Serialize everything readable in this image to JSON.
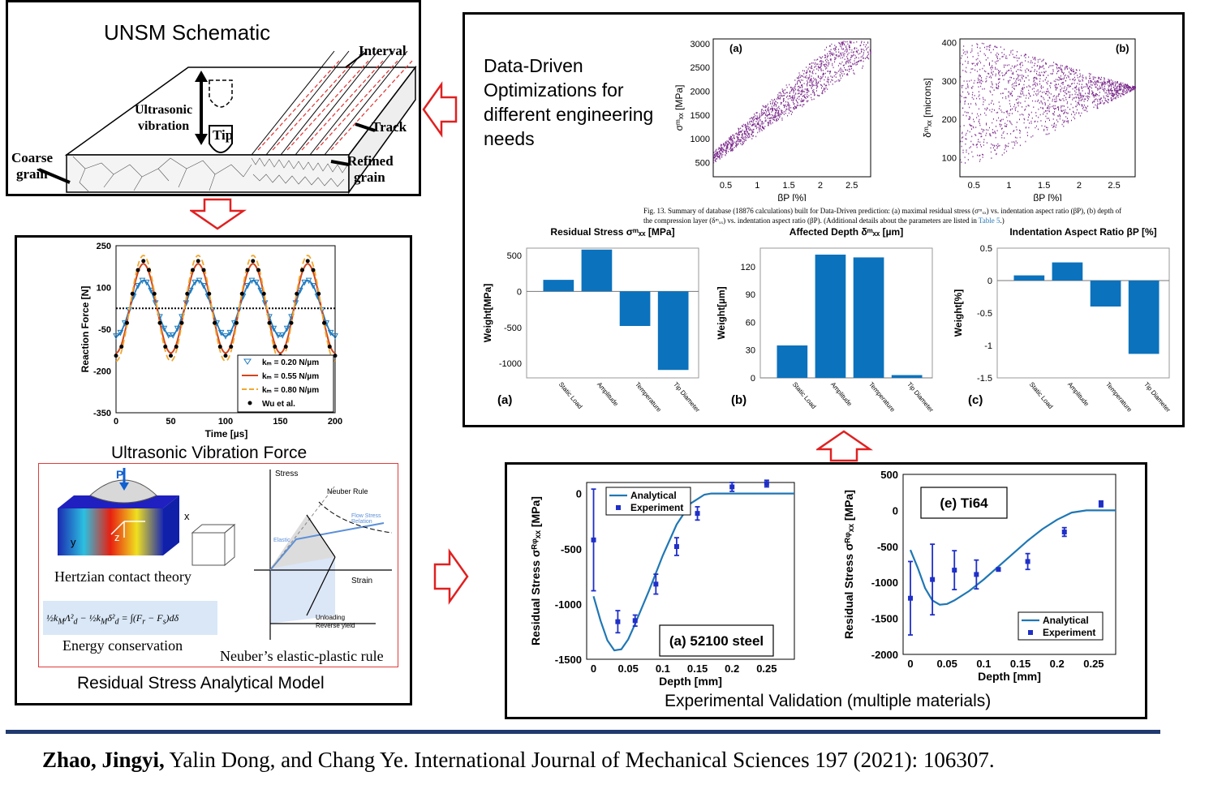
{
  "unsm": {
    "title": "UNSM Schematic",
    "labels": {
      "interval": "Interval",
      "ultrasonic": "Ultrasonic",
      "vibration": "vibration",
      "tip": "Tip",
      "track": "Track",
      "coarse": "Coarse",
      "coarse_grain": "grain",
      "refined": "Refined",
      "refined_grain": "grain"
    }
  },
  "force": {
    "caption": "Ultrasonic Vibration Force",
    "ylabel": "Reaction Force [N]",
    "xlabel": "Time [µs]",
    "yticks": [
      "250",
      "100",
      "-50",
      "-200",
      "-350"
    ],
    "xticks": [
      "0",
      "50",
      "100",
      "150",
      "200"
    ],
    "legend": [
      "kₘ = 0.20 N/µm",
      "kₘ = 0.55 N/µm",
      "kₘ = 0.80 N/µm",
      "Wu et al."
    ],
    "colors": {
      "k020": "#1f7bbf",
      "k055": "#d3451c",
      "k080": "#f0a830",
      "wu": "#000000"
    }
  },
  "model": {
    "caption": "Residual Stress Analytical Model",
    "hertz_label": "Hertzian contact theory",
    "energy_label": "Energy conservation",
    "neuber_label": "Neuber’s elastic-plastic rule",
    "neuber_rule": "Neuber Rule",
    "stress": "Stress",
    "strain": "Strain",
    "flow": "Flow Stress Relation",
    "elastic": "Elastic",
    "unloading": "Unloading",
    "reverse": "Reverse yield",
    "force_p": "P",
    "axes": {
      "x": "x",
      "y": "y",
      "z": "z"
    }
  },
  "dd": {
    "title_l1": "Data-Driven",
    "title_l2": "Optimizations for",
    "title_l3": "different engineering",
    "title_l4": "needs",
    "scatter_a": {
      "tag": "(a)",
      "ylabel": "σᵐₓₓ [MPa]",
      "xlabel": "βP [%]",
      "yticks": [
        "3000",
        "2500",
        "2000",
        "1500",
        "1000",
        "500"
      ],
      "xticks": [
        "0.5",
        "1",
        "1.5",
        "2",
        "2.5"
      ]
    },
    "scatter_b": {
      "tag": "(b)",
      "ylabel": "δᵐₓₓ [microns]",
      "xlabel": "βP [%]",
      "yticks": [
        "400",
        "300",
        "200",
        "100"
      ],
      "xticks": [
        "0.5",
        "1",
        "1.5",
        "2",
        "2.5"
      ]
    },
    "fig_caption_l1": "Fig. 13.  Summary of database (18876 calculations) built for Data-Driven prediction: (a) maximal residual stress (σᵐₓₓ) vs. indentation aspect ratio (βP), (b) depth of",
    "fig_caption_l2": "the compression layer (δᵐₓₓ) vs. indentation aspect ratio (βP). (Additional details about the parameters are listed in ",
    "fig_caption_link": "Table 5",
    "fig_caption_end": ".)",
    "bar_a": {
      "title": "Residual Stress σᵐₓₓ [MPa]",
      "ylabel": "Weight[MPa]",
      "tag": "(a)",
      "yticks": [
        "500",
        "0",
        "-500",
        "-1000"
      ]
    },
    "bar_b": {
      "title": "Affected Depth δᵐₓₓ [µm]",
      "ylabel": "Weight[µm]",
      "tag": "(b)",
      "yticks": [
        "120",
        "90",
        "60",
        "30",
        "0"
      ]
    },
    "bar_c": {
      "title": "Indentation Aspect Ratio βP [%]",
      "ylabel": "Weight[%]",
      "tag": "(c)",
      "yticks": [
        "0.5",
        "0",
        "-0.5",
        "-1",
        "-1.5"
      ]
    },
    "bar_categories": [
      "Static Load",
      "Amplitude",
      "Temperature",
      "Tip Diameter"
    ],
    "scatter_color": "#7b2a8c",
    "bar_color": "#0b72bd"
  },
  "validation": {
    "caption": "Experimental Validation (multiple materials)",
    "ylabel": "Residual Stress σᴿᵠₓₓ [MPa]",
    "xlabel": "Depth [mm]",
    "legend_analytical": "Analytical",
    "legend_experiment": "Experiment",
    "left": {
      "tag": "(a) 52100 steel",
      "yticks": [
        "0",
        "-500",
        "-1000",
        "-1500"
      ],
      "xticks": [
        "0",
        "0.05",
        "0.1",
        "0.15",
        "0.2",
        "0.25"
      ]
    },
    "right": {
      "tag": "(e) Ti64",
      "yticks": [
        "500",
        "0",
        "-500",
        "-1000",
        "-1500",
        "-2000"
      ],
      "xticks": [
        "0",
        "0.05",
        "0.1",
        "0.15",
        "0.2",
        "0.25"
      ]
    },
    "line_color": "#1f77b4",
    "point_color": "#1f2fc8"
  },
  "citation": {
    "authors_bold": "Zhao, Jingyi,",
    "rest": " Yalin Dong, and Chang Ye. International Journal of Mechanical Sciences 197 (2021): 106307."
  },
  "chart_data": [
    {
      "type": "line",
      "title": "",
      "xlabel": "Time [µs]",
      "ylabel": "Reaction Force [N]",
      "xlim": [
        0,
        200
      ],
      "ylim": [
        -350,
        250
      ],
      "series": [
        {
          "name": "kₘ = 0.20 N/µm",
          "amplitude": 100,
          "offset": 25,
          "period": 50
        },
        {
          "name": "kₘ = 0.55 N/µm",
          "amplitude": 160,
          "offset": 25,
          "period": 50
        },
        {
          "name": "kₘ = 0.80 N/µm",
          "amplitude": 190,
          "offset": 25,
          "period": 50
        },
        {
          "name": "Wu et al.",
          "amplitude": 170,
          "offset": 25,
          "period": 50
        }
      ]
    },
    {
      "type": "bar",
      "title": "Residual Stress σᵐₓₓ [MPa]",
      "ylabel": "Weight[MPa]",
      "categories": [
        "Static Load",
        "Amplitude",
        "Temperature",
        "Tip Diameter"
      ],
      "values": [
        160,
        580,
        -480,
        -1090
      ],
      "ylim": [
        -1200,
        600
      ]
    },
    {
      "type": "bar",
      "title": "Affected Depth δᵐₓₓ [µm]",
      "ylabel": "Weight[µm]",
      "categories": [
        "Static Load",
        "Amplitude",
        "Temperature",
        "Tip Diameter"
      ],
      "values": [
        35,
        133,
        130,
        3
      ],
      "ylim": [
        0,
        140
      ]
    },
    {
      "type": "bar",
      "title": "Indentation Aspect Ratio βP [%]",
      "ylabel": "Weight[%]",
      "categories": [
        "Static Load",
        "Amplitude",
        "Temperature",
        "Tip Diameter"
      ],
      "values": [
        0.08,
        0.28,
        -0.4,
        -1.13
      ],
      "ylim": [
        -1.5,
        0.5
      ]
    },
    {
      "type": "line",
      "title": "(a) 52100 steel",
      "xlabel": "Depth [mm]",
      "xlim": [
        -0.01,
        0.29
      ],
      "ylim": [
        -1500,
        100
      ],
      "series": [
        {
          "name": "Analytical",
          "x": [
            0,
            0.01,
            0.02,
            0.03,
            0.04,
            0.05,
            0.06,
            0.08,
            0.1,
            0.12,
            0.14,
            0.16,
            0.17,
            0.2,
            0.25,
            0.29
          ],
          "y": [
            -930,
            -1150,
            -1330,
            -1420,
            -1410,
            -1320,
            -1180,
            -880,
            -560,
            -280,
            -90,
            -10,
            0,
            0,
            0,
            0
          ]
        },
        {
          "name": "Experiment",
          "x": [
            0,
            0.035,
            0.06,
            0.09,
            0.12,
            0.15,
            0.2,
            0.25
          ],
          "y": [
            -420,
            -1160,
            -1150,
            -820,
            -480,
            -180,
            60,
            90
          ],
          "err": [
            460,
            100,
            50,
            90,
            80,
            60,
            40,
            30
          ]
        }
      ]
    },
    {
      "type": "line",
      "title": "(e) Ti64",
      "xlabel": "Depth [mm]",
      "xlim": [
        -0.01,
        0.28
      ],
      "ylim": [
        -2000,
        500
      ],
      "series": [
        {
          "name": "Analytical",
          "x": [
            0,
            0.01,
            0.02,
            0.03,
            0.04,
            0.05,
            0.06,
            0.08,
            0.1,
            0.12,
            0.14,
            0.16,
            0.18,
            0.2,
            0.22,
            0.24,
            0.28
          ],
          "y": [
            -550,
            -800,
            -1080,
            -1250,
            -1310,
            -1300,
            -1250,
            -1120,
            -960,
            -780,
            -600,
            -420,
            -260,
            -130,
            -30,
            0,
            0
          ]
        },
        {
          "name": "Experiment",
          "x": [
            0,
            0.03,
            0.06,
            0.09,
            0.12,
            0.16,
            0.21,
            0.26
          ],
          "y": [
            -1220,
            -960,
            -830,
            -890,
            -820,
            -710,
            -300,
            90
          ],
          "err": [
            510,
            490,
            270,
            200,
            20,
            110,
            60,
            40
          ]
        }
      ]
    }
  ]
}
